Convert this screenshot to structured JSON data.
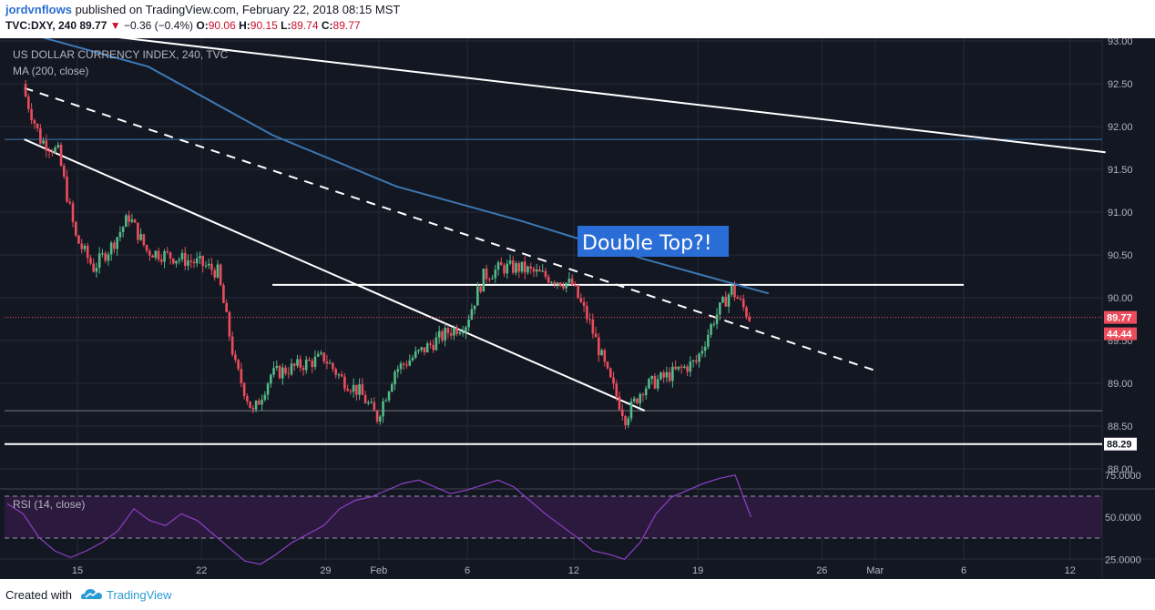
{
  "header": {
    "author": "jordvnflows",
    "published_text": "published on TradingView.com, February 22, 2018 08:15 MST",
    "symbol": "TVC:DXY, 240",
    "last": "89.77",
    "change_arrow": "▼",
    "change": "−0.36 (−0.4%)",
    "open_label": "O:",
    "open": "90.06",
    "high_label": "H:",
    "high": "90.15",
    "low_label": "L:",
    "low": "89.74",
    "close_label": "C:",
    "close": "89.77"
  },
  "footer": {
    "created_with": "Created with",
    "brand": "TradingView",
    "logo_icon": "tradingview-logo-icon"
  },
  "colors": {
    "background": "#131722",
    "rsi_fill": "#2b1a3d",
    "up": "#53b987",
    "down": "#eb4d5c",
    "ma": "#3c78b3",
    "rsi_line": "#8e3fc7",
    "axis_text": "#b2b5be",
    "annotation_bg": "#2a6dd6"
  },
  "chart_data": [
    {
      "type": "candlestick",
      "title": "US DOLLAR CURRENCY INDEX, 240, TVC",
      "indicator_label": "MA (200, close)",
      "ylim": [
        87.75,
        93.0
      ],
      "y_ticks": [
        "93.00",
        "92.50",
        "92.00",
        "91.50",
        "91.00",
        "90.50",
        "90.00",
        "89.50",
        "89.00",
        "88.50",
        "88.00"
      ],
      "x_ticks": [
        "15",
        "22",
        "29",
        "Feb",
        "6",
        "12",
        "19",
        "26",
        "Mar",
        "6",
        "12"
      ],
      "current_price_badge": "89.77",
      "badge_rsi": "44.44",
      "level_badge": "88.29",
      "annotation": "Double Top?!",
      "close_approx": [
        {
          "date": "Jan 12",
          "close": 92.45
        },
        {
          "date": "Jan 13",
          "close": 91.85
        },
        {
          "date": "Jan 14",
          "close": 91.7
        },
        {
          "date": "Jan 15",
          "close": 90.7
        },
        {
          "date": "Jan 16",
          "close": 90.35
        },
        {
          "date": "Jan 17",
          "close": 90.6
        },
        {
          "date": "Jan 18",
          "close": 90.95
        },
        {
          "date": "Jan 19",
          "close": 90.55
        },
        {
          "date": "Jan 22",
          "close": 90.4
        },
        {
          "date": "Jan 23",
          "close": 90.3
        },
        {
          "date": "Jan 24",
          "close": 89.2
        },
        {
          "date": "Jan 25",
          "close": 88.65
        },
        {
          "date": "Jan 26",
          "close": 89.1
        },
        {
          "date": "Jan 29",
          "close": 89.3
        },
        {
          "date": "Jan 30",
          "close": 89.05
        },
        {
          "date": "Jan 31",
          "close": 88.9
        },
        {
          "date": "Feb 1",
          "close": 88.6
        },
        {
          "date": "Feb 2",
          "close": 89.15
        },
        {
          "date": "Feb 5",
          "close": 89.6
        },
        {
          "date": "Feb 6",
          "close": 89.7
        },
        {
          "date": "Feb 7",
          "close": 90.25
        },
        {
          "date": "Feb 8",
          "close": 90.35
        },
        {
          "date": "Feb 9",
          "close": 90.35
        },
        {
          "date": "Feb 12",
          "close": 90.15
        },
        {
          "date": "Feb 13",
          "close": 89.7
        },
        {
          "date": "Feb 14",
          "close": 89.1
        },
        {
          "date": "Feb 15",
          "close": 88.6
        },
        {
          "date": "Feb 16",
          "close": 88.95
        },
        {
          "date": "Feb 19",
          "close": 89.25
        },
        {
          "date": "Feb 20",
          "close": 89.75
        },
        {
          "date": "Feb 21",
          "close": 90.1
        },
        {
          "date": "Feb 22",
          "close": 89.77
        }
      ],
      "ma_200_approx": [
        {
          "date": "Jan 12",
          "value": 93.1
        },
        {
          "date": "Jan 19",
          "value": 92.7
        },
        {
          "date": "Jan 26",
          "value": 91.9
        },
        {
          "date": "Feb 2",
          "value": 91.3
        },
        {
          "date": "Feb 9",
          "value": 90.9
        },
        {
          "date": "Feb 16",
          "value": 90.45
        },
        {
          "date": "Feb 23",
          "value": 90.05
        }
      ],
      "horizontal_levels": [
        91.85,
        90.15,
        88.68,
        88.29
      ],
      "trendlines": [
        {
          "style": "solid",
          "from": {
            "date": "Jan 12",
            "value": 91.85
          },
          "to": {
            "date": "Feb 16",
            "value": 88.68
          }
        },
        {
          "style": "dashed",
          "from": {
            "date": "Jan 12",
            "value": 92.45
          },
          "to": {
            "date": "Mar 1",
            "value": 89.15
          }
        },
        {
          "style": "solid",
          "from": {
            "date": "Jan 17",
            "value": 93.05
          },
          "to": {
            "date": "Mar 14",
            "value": 91.7
          }
        }
      ]
    },
    {
      "type": "line",
      "title": "RSI (14, close)",
      "ylim": [
        20,
        80
      ],
      "y_ticks": [
        "75.0000",
        "50.0000",
        "25.0000"
      ],
      "bands": [
        70,
        30
      ],
      "values_approx": [
        58,
        52,
        38,
        30,
        26,
        30,
        35,
        42,
        55,
        48,
        45,
        52,
        48,
        40,
        32,
        24,
        22,
        28,
        35,
        40,
        45,
        55,
        60,
        62,
        66,
        70,
        72,
        68,
        64,
        66,
        69,
        72,
        68,
        60,
        52,
        45,
        38,
        30,
        28,
        25,
        35,
        52,
        62,
        66,
        70,
        73,
        75,
        50
      ]
    }
  ]
}
